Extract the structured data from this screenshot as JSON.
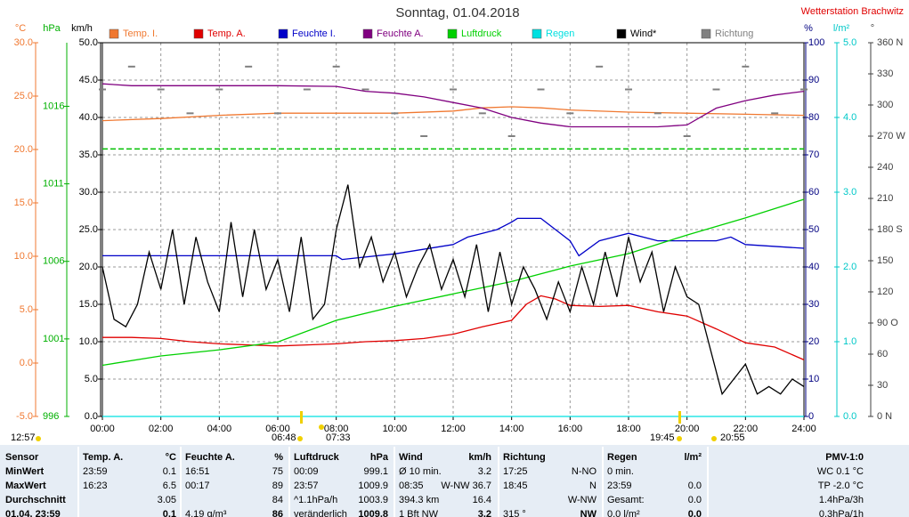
{
  "header": {
    "title": "Sonntag, 01.04.2018",
    "station": "Wetterstation Brachwitz",
    "markers": [
      "12:57",
      "06:48",
      "07:33",
      "19:45",
      "20:55"
    ]
  },
  "chart_data": {
    "type": "line",
    "xlim": [
      0,
      24
    ],
    "xticks": [
      {
        "value": 0,
        "label": "00:00"
      },
      {
        "value": 2,
        "label": "02:00"
      },
      {
        "value": 4,
        "label": "04:00"
      },
      {
        "value": 6,
        "label": "06:00"
      },
      {
        "value": 8,
        "label": "08:00"
      },
      {
        "value": 10,
        "label": "10:00"
      },
      {
        "value": 12,
        "label": "12:00"
      },
      {
        "value": 14,
        "label": "14:00"
      },
      {
        "value": 16,
        "label": "16:00"
      },
      {
        "value": 18,
        "label": "18:00"
      },
      {
        "value": 20,
        "label": "20:00"
      },
      {
        "value": 22,
        "label": "22:00"
      },
      {
        "value": 24,
        "label": "24:00"
      }
    ],
    "grid": true,
    "ylabel": "km/h",
    "ycolor": "#000000",
    "ylim": [
      0,
      50
    ],
    "yticks": [
      {
        "value": 0,
        "label": "0.0"
      },
      {
        "value": 5,
        "label": "5.0"
      },
      {
        "value": 10,
        "label": "10.0"
      },
      {
        "value": 15,
        "label": "15.0"
      },
      {
        "value": 20,
        "label": "20.0"
      },
      {
        "value": 25,
        "label": "25.0"
      },
      {
        "value": 30,
        "label": "30.0"
      },
      {
        "value": 35,
        "label": "35.0"
      },
      {
        "value": 40,
        "label": "40.0"
      },
      {
        "value": 45,
        "label": "45.0"
      },
      {
        "value": 50,
        "label": "50.0"
      }
    ],
    "y2label": "°C",
    "y2color": "#f07830",
    "y2lim": [
      -5,
      30
    ],
    "y2ticks": [
      {
        "value": -5,
        "label": "-5.0"
      },
      {
        "value": 0,
        "label": "0.0"
      },
      {
        "value": 5,
        "label": "5.0"
      },
      {
        "value": 10,
        "label": "10.0"
      },
      {
        "value": 15,
        "label": "15.0"
      },
      {
        "value": 20,
        "label": "20.0"
      },
      {
        "value": 25,
        "label": "25.0"
      },
      {
        "value": 30,
        "label": "30.0"
      }
    ],
    "y3label": "hPa",
    "y3color": "#00b000",
    "y3lim": [
      996,
      1020.1
    ],
    "y3ticks": [
      996,
      1001,
      1006,
      1011,
      1016
    ],
    "y4label": "%",
    "y4color": "#000080",
    "y4lim": [
      0,
      100
    ],
    "y4ticks": [
      0,
      10,
      20,
      30,
      40,
      50,
      60,
      70,
      80,
      90,
      100
    ],
    "y5label": "l/m²",
    "y5color": "#00c8c8",
    "y5lim": [
      0,
      5
    ],
    "y5ticks": [
      {
        "value": 0,
        "label": "0.0"
      },
      {
        "value": 1,
        "label": "1.0"
      },
      {
        "value": 2,
        "label": "2.0"
      },
      {
        "value": 3,
        "label": "3.0"
      },
      {
        "value": 4,
        "label": "4.0"
      },
      {
        "value": 5,
        "label": "5.0"
      }
    ],
    "y6label": "°",
    "y6color": "#404040",
    "y6lim": [
      0,
      360
    ],
    "y6ticks": [
      {
        "value": 0,
        "label": "0 N"
      },
      30,
      60,
      {
        "value": 90,
        "label": "90 O"
      },
      120,
      150,
      {
        "value": 180,
        "label": "180 S"
      },
      210,
      240,
      {
        "value": 270,
        "label": "270 W"
      },
      300,
      330,
      {
        "value": 360,
        "label": "360 N"
      }
    ],
    "reference_lines": [
      {
        "axis": "y3",
        "value": 1013.25,
        "color": "#00c000"
      }
    ],
    "series": [
      {
        "name": "Temp. I.",
        "color": "#f07830",
        "axis": "y2",
        "x": [
          0,
          2,
          4,
          6,
          8,
          10,
          12,
          13,
          14,
          15,
          16,
          18,
          20,
          22,
          24
        ],
        "values": [
          22.7,
          22.9,
          23.2,
          23.4,
          23.4,
          23.4,
          23.6,
          23.9,
          24,
          23.9,
          23.7,
          23.5,
          23.4,
          23.3,
          23.2
        ]
      },
      {
        "name": "Temp. A.",
        "color": "#e00000",
        "axis": "y2",
        "x": [
          0,
          1,
          2,
          3,
          4,
          5,
          6,
          7,
          8,
          9,
          10,
          11,
          12,
          13,
          14,
          14.5,
          15,
          15.5,
          16,
          17,
          18,
          19,
          20,
          21,
          22,
          23,
          24
        ],
        "values": [
          2.4,
          2.4,
          2.3,
          2.0,
          1.8,
          1.7,
          1.6,
          1.7,
          1.8,
          2.0,
          2.1,
          2.3,
          2.7,
          3.4,
          4.0,
          5.5,
          6.3,
          6.0,
          5.4,
          5.3,
          5.4,
          4.8,
          4.4,
          3.2,
          1.9,
          1.5,
          0.3
        ]
      },
      {
        "name": "Feuchte I.",
        "color": "#0000c8",
        "axis": "y4",
        "x": [
          0,
          2,
          4,
          6,
          8,
          8.2,
          10,
          12,
          12.5,
          13,
          13.5,
          14,
          14.2,
          15,
          15.5,
          16,
          16.3,
          17,
          17.5,
          18,
          19,
          20,
          21,
          21.5,
          22,
          24
        ],
        "values": [
          43,
          43,
          43,
          43,
          43,
          42,
          43.5,
          46,
          48,
          49,
          50,
          52,
          53,
          53,
          50,
          47,
          43,
          47,
          48,
          49,
          47,
          47,
          47,
          48,
          46,
          45
        ]
      },
      {
        "name": "Feuchte A.",
        "color": "#800080",
        "axis": "y4",
        "x": [
          0,
          1,
          2,
          4,
          6,
          8,
          9,
          10,
          11,
          12,
          13,
          14,
          15,
          16,
          17,
          18,
          19,
          20,
          21,
          22,
          23,
          24
        ],
        "values": [
          89,
          88.5,
          88.5,
          88.5,
          88.5,
          88.3,
          87,
          86.5,
          85.5,
          84,
          82.5,
          80,
          78.5,
          77.5,
          77.5,
          77.5,
          77.5,
          78,
          82.5,
          84.5,
          86,
          87
        ]
      },
      {
        "name": "Luftdruck",
        "color": "#00d000",
        "axis": "y3",
        "x": [
          0,
          2,
          4,
          6,
          8,
          10,
          12,
          14,
          16,
          18,
          20,
          22,
          24
        ],
        "values": [
          999.3,
          999.9,
          1000.3,
          1000.8,
          1002.2,
          1003.1,
          1003.9,
          1004.7,
          1005.7,
          1006.5,
          1007.7,
          1008.8,
          1010.0
        ]
      },
      {
        "name": "Regen",
        "color": "#00e0e0",
        "axis": "y5",
        "x": [
          0,
          24
        ],
        "values": [
          0,
          0
        ]
      },
      {
        "name": "Wind*",
        "color": "#000000",
        "axis": "y",
        "x": [
          0,
          0.4,
          0.8,
          1.2,
          1.6,
          2,
          2.4,
          2.8,
          3.2,
          3.6,
          4,
          4.4,
          4.8,
          5.2,
          5.6,
          6,
          6.4,
          6.8,
          7.2,
          7.6,
          8,
          8.4,
          8.8,
          9.2,
          9.6,
          10,
          10.4,
          10.8,
          11.2,
          11.6,
          12,
          12.4,
          12.8,
          13.2,
          13.6,
          14,
          14.4,
          14.8,
          15.2,
          15.6,
          16,
          16.4,
          16.8,
          17.2,
          17.6,
          18,
          18.4,
          18.8,
          19.2,
          19.6,
          20,
          20.4,
          20.8,
          21.2,
          21.6,
          22,
          22.4,
          22.8,
          23.2,
          23.6,
          24
        ],
        "values": [
          20,
          13,
          12,
          15,
          22,
          17,
          25,
          15,
          24,
          18,
          14,
          26,
          16,
          25,
          17,
          21,
          14,
          24,
          13,
          15,
          25,
          31,
          20,
          24,
          18,
          22,
          16,
          20,
          23,
          17,
          21,
          16,
          23,
          14,
          22,
          15,
          20,
          17,
          13,
          18,
          14,
          20,
          15,
          22,
          16,
          24,
          18,
          22,
          14,
          20,
          16,
          15,
          9,
          3,
          5,
          7,
          3,
          4,
          3,
          5,
          4
        ]
      },
      {
        "name": "Richtung",
        "color": "#808080",
        "axis": "y6",
        "mode": "points",
        "x": [
          0,
          1,
          2,
          3,
          4,
          5,
          6,
          7,
          8,
          9,
          10,
          11,
          12,
          13,
          14,
          15,
          16,
          17,
          18,
          19,
          20,
          21,
          22,
          23,
          24
        ],
        "values": [
          315,
          337,
          315,
          292,
          315,
          337,
          292,
          315,
          337,
          315,
          292,
          270,
          315,
          292,
          270,
          315,
          292,
          337,
          315,
          292,
          270,
          315,
          337,
          292,
          315
        ]
      }
    ]
  },
  "table": {
    "rows": [
      [
        [
          "Sensor",
          null
        ],
        [
          "Temp. A.",
          "°C"
        ],
        [
          "Feuchte A.",
          "%"
        ],
        [
          "Luftdruck",
          "hPa"
        ],
        [
          "Wind",
          "km/h"
        ],
        [
          "Richtung",
          null
        ],
        [
          "Regen",
          "l/m²"
        ],
        [
          null,
          "PMV-1:0"
        ]
      ],
      [
        [
          "MinWert",
          null
        ],
        [
          "23:59",
          "0.1"
        ],
        [
          "16:51",
          "75"
        ],
        [
          "00:09",
          "999.1"
        ],
        [
          "Ø 10 min.",
          "3.2"
        ],
        [
          "17:25",
          "N-NO"
        ],
        [
          "0 min.",
          null
        ],
        [
          null,
          "WC 0.1 °C"
        ]
      ],
      [
        [
          "MaxWert",
          null
        ],
        [
          "16:23",
          "6.5"
        ],
        [
          "00:17",
          "89"
        ],
        [
          "23:57",
          "1009.9"
        ],
        [
          "08:35",
          "W-NW 36.7"
        ],
        [
          "18:45",
          "N"
        ],
        [
          "23:59",
          "0.0"
        ],
        [
          null,
          "TP -2.0 °C"
        ]
      ],
      [
        [
          "Durchschnitt",
          null
        ],
        [
          null,
          "3.05"
        ],
        [
          null,
          "84"
        ],
        [
          "^1.1hPa/h",
          "1003.9"
        ],
        [
          "394.3 km",
          "16.4"
        ],
        [
          null,
          "W-NW"
        ],
        [
          "Gesamt:",
          "0.0"
        ],
        [
          null,
          "1.4hPa/3h"
        ]
      ],
      [
        [
          "01.04. 23:59",
          null
        ],
        [
          null,
          "0.1"
        ],
        [
          "4.19 g/m³",
          "86"
        ],
        [
          "veränderlich",
          "1009.8"
        ],
        [
          "1 Bft NW",
          "3.2"
        ],
        [
          "315 °",
          "NW"
        ],
        [
          "0.0 l/m²",
          "0.0"
        ],
        [
          null,
          "0.3hPa/1h"
        ]
      ]
    ]
  }
}
